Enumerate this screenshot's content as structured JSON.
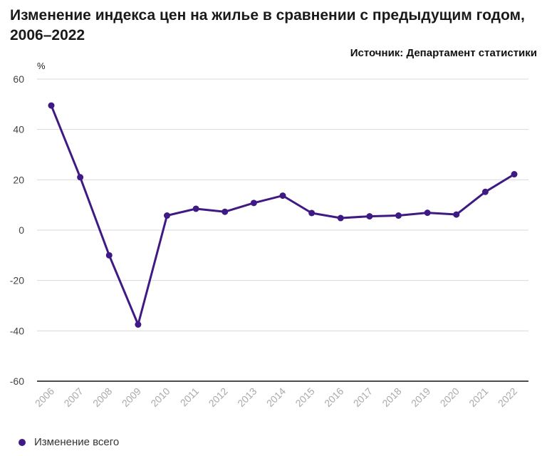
{
  "title": "Изменение индекса цен на жилье в сравнении с предыдущим годом, 2006–2022",
  "source": "Источник: Департамент статистики",
  "colors": {
    "series": "#3f1a84",
    "grid": "#d9d9d9",
    "axis": "#111111",
    "tick": "#444444",
    "xtick": "#aaaaaa"
  },
  "legend": {
    "label": "Изменение всего"
  },
  "chart_data": {
    "type": "line",
    "title": "Изменение индекса цен на жилье в сравнении с предыдущим годом, 2006–2022",
    "ylabel": "%",
    "xlabel": "",
    "ylim": [
      -60,
      60
    ],
    "yticks": [
      60,
      40,
      20,
      0,
      -20,
      -40,
      -60
    ],
    "yticklabels": [
      "60",
      "40",
      "20",
      "0",
      "-20",
      "-40",
      "-60"
    ],
    "categories": [
      "2006",
      "2007",
      "2008",
      "2009",
      "2010",
      "2011",
      "2012",
      "2013",
      "2014",
      "2015",
      "2016",
      "2017",
      "2018",
      "2019",
      "2020",
      "2021",
      "2022"
    ],
    "series": [
      {
        "name": "Изменение всего",
        "values": [
          49.5,
          21,
          -10,
          -37.5,
          5.8,
          8.5,
          7.3,
          10.8,
          13.7,
          6.8,
          4.8,
          5.5,
          5.8,
          6.9,
          6.2,
          15.2,
          22.2
        ]
      }
    ],
    "grid": true,
    "legend_position": "bottom-left"
  }
}
